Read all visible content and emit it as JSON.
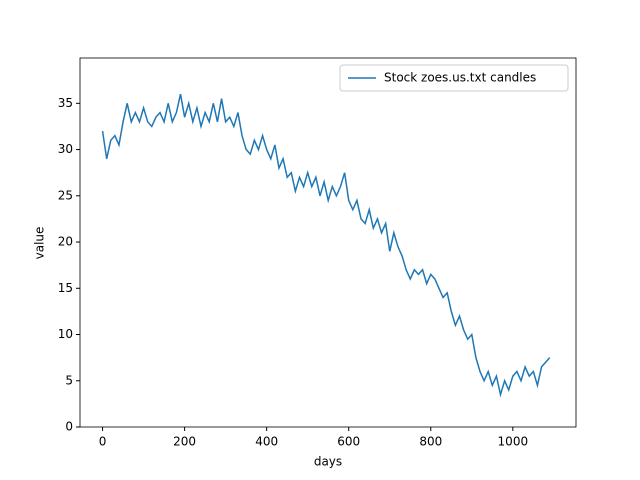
{
  "chart_data": {
    "type": "line",
    "x_label": "days",
    "y_label": "value",
    "x": [
      0,
      10,
      20,
      30,
      40,
      50,
      60,
      70,
      80,
      90,
      100,
      110,
      120,
      130,
      140,
      150,
      160,
      170,
      180,
      190,
      200,
      210,
      220,
      230,
      240,
      250,
      260,
      270,
      280,
      290,
      300,
      310,
      320,
      330,
      340,
      350,
      360,
      370,
      380,
      390,
      400,
      410,
      420,
      430,
      440,
      450,
      460,
      470,
      480,
      490,
      500,
      510,
      520,
      530,
      540,
      550,
      560,
      570,
      580,
      590,
      600,
      610,
      620,
      630,
      640,
      650,
      660,
      670,
      680,
      690,
      700,
      710,
      720,
      730,
      740,
      750,
      760,
      770,
      780,
      790,
      800,
      810,
      820,
      830,
      840,
      850,
      860,
      870,
      880,
      890,
      900,
      910,
      920,
      930,
      940,
      950,
      960,
      970,
      980,
      990,
      1000,
      1010,
      1020,
      1030,
      1040,
      1050,
      1060,
      1070,
      1080,
      1090
    ],
    "series": [
      {
        "name": "Stock zoes.us.txt candles",
        "color": "#1f77b4",
        "values": [
          32,
          29,
          31,
          31.5,
          30.5,
          33,
          35,
          33,
          34,
          33,
          34.5,
          33,
          32.5,
          33.5,
          34,
          33,
          35,
          33,
          34,
          36,
          33.5,
          35,
          33,
          34.5,
          32.5,
          34,
          33,
          35,
          33,
          35.5,
          33,
          33.5,
          32.5,
          34,
          31.5,
          30,
          29.5,
          31,
          30,
          31.5,
          30,
          29,
          30.5,
          28,
          29,
          27,
          27.5,
          25.5,
          27,
          26,
          27.5,
          26,
          27,
          25,
          26.5,
          24.5,
          26,
          25,
          26,
          27.5,
          24.5,
          23.5,
          24.5,
          22.5,
          22,
          23.5,
          21.5,
          22.5,
          21,
          22,
          19,
          21,
          19.5,
          18.5,
          17,
          16,
          17,
          16.5,
          17,
          15.5,
          16.5,
          16,
          15,
          14,
          14.5,
          12.5,
          11,
          12,
          10.5,
          9.5,
          10,
          7.5,
          6,
          5,
          6,
          4.5,
          5.5,
          3.5,
          5,
          4,
          5.5,
          6,
          5,
          6.5,
          5.5,
          6,
          4.5,
          6.5,
          7,
          7.5
        ]
      }
    ],
    "xlim": [
      -55,
      1154
    ],
    "ylim": [
      0,
      39.9
    ],
    "xticks": [
      0,
      200,
      400,
      600,
      800,
      1000
    ],
    "yticks": [
      0,
      5,
      10,
      15,
      20,
      25,
      30,
      35
    ],
    "legend": "upper right"
  }
}
